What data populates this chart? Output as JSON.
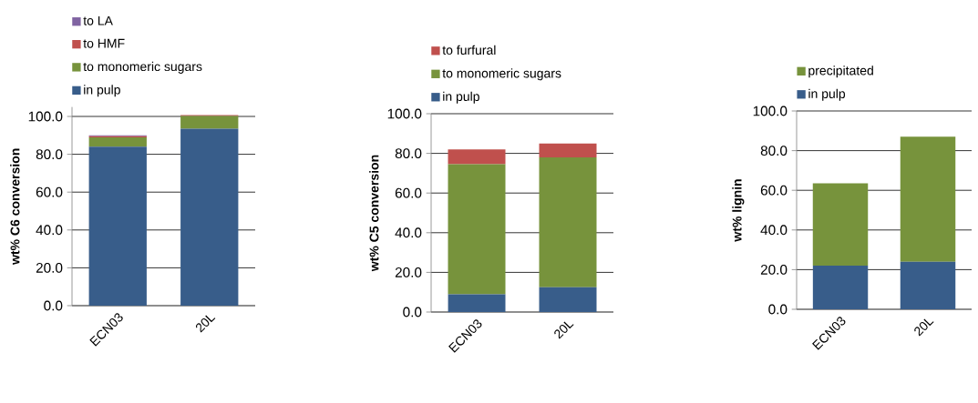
{
  "chart_data": [
    {
      "type": "bar",
      "stacked": true,
      "categories": [
        "ECN03",
        "20L"
      ],
      "ylabel": "wt% C6 conversion",
      "ylim": [
        0,
        105
      ],
      "yticks": [
        {
          "value": 0,
          "label": "0.0"
        },
        {
          "value": 20,
          "label": "20.0"
        },
        {
          "value": 40,
          "label": "40.0"
        },
        {
          "value": 60,
          "label": "60.0"
        },
        {
          "value": 80,
          "label": "80.0"
        },
        {
          "value": 100,
          "label": "100.0"
        }
      ],
      "grid": "y",
      "legend": "top",
      "series": [
        {
          "name": "in pulp",
          "color": "#385d8a",
          "values": [
            84,
            93.5
          ]
        },
        {
          "name": "to monomeric sugars",
          "color": "#77933c",
          "values": [
            5,
            6.7
          ]
        },
        {
          "name": "to HMF",
          "color": "#c0504d",
          "values": [
            0.6,
            0.5
          ]
        },
        {
          "name": "to LA",
          "color": "#8064a2",
          "values": [
            0.4,
            null
          ]
        }
      ]
    },
    {
      "type": "bar",
      "stacked": true,
      "categories": [
        "ECN03",
        "20L"
      ],
      "ylabel": "wt% C5 conversion",
      "ylim": [
        0,
        100
      ],
      "yticks": [
        {
          "value": 0,
          "label": "0.0"
        },
        {
          "value": 20,
          "label": "20.0"
        },
        {
          "value": 40,
          "label": "40.0"
        },
        {
          "value": 60,
          "label": "60.0"
        },
        {
          "value": 80,
          "label": "80.0"
        },
        {
          "value": 100,
          "label": "100.0"
        }
      ],
      "grid": "y",
      "legend": "top",
      "series": [
        {
          "name": "in pulp",
          "color": "#385d8a",
          "values": [
            9,
            12.5
          ]
        },
        {
          "name": "to monomeric sugars",
          "color": "#77933c",
          "values": [
            65.5,
            65.5
          ]
        },
        {
          "name": "to furfural",
          "color": "#c0504d",
          "values": [
            7.5,
            7
          ]
        }
      ]
    },
    {
      "type": "bar",
      "stacked": true,
      "categories": [
        "ECN03",
        "20L"
      ],
      "ylabel": "wt% lignin",
      "ylim": [
        0,
        100
      ],
      "yticks": [
        {
          "value": 0,
          "label": "0.0"
        },
        {
          "value": 20,
          "label": "20.0"
        },
        {
          "value": 40,
          "label": "40.0"
        },
        {
          "value": 60,
          "label": "60.0"
        },
        {
          "value": 80,
          "label": "80.0"
        },
        {
          "value": 100,
          "label": "100.0"
        }
      ],
      "grid": "y",
      "legend": "top",
      "series": [
        {
          "name": "in pulp",
          "color": "#385d8a",
          "values": [
            22,
            24
          ]
        },
        {
          "name": "precipitated",
          "color": "#77933c",
          "values": [
            41.5,
            63
          ]
        }
      ]
    }
  ]
}
